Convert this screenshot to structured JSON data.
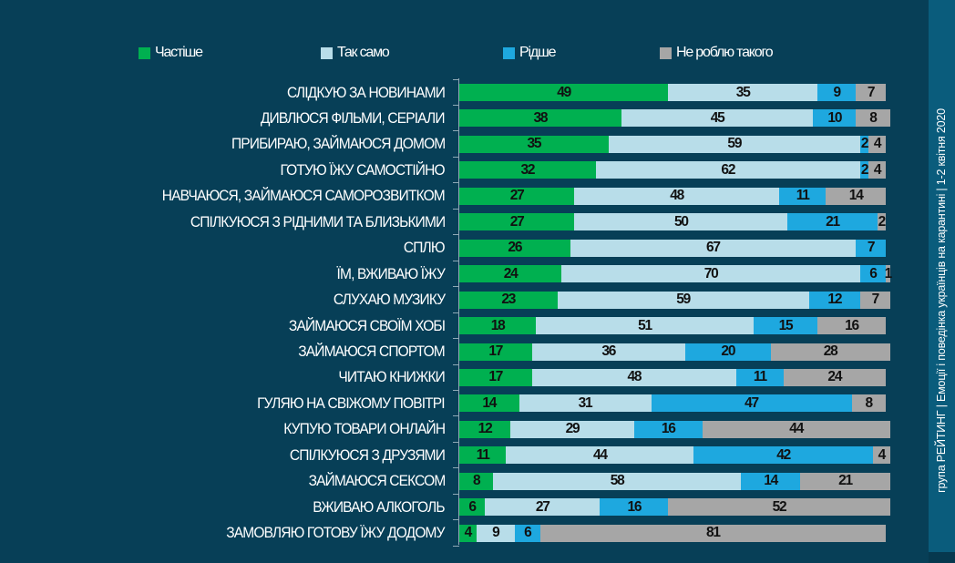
{
  "side_caption": "група РЕЙТИНГ  |  Емоції і поведінка українців на карантині  |  1-2 квітня 2020",
  "chart_data": {
    "type": "bar",
    "orientation": "horizontal",
    "stacked": true,
    "title": "",
    "xlabel": "",
    "ylabel": "",
    "xlim": [
      0,
      100
    ],
    "grid": false,
    "legend_position": "top",
    "legend": [
      {
        "key": "more",
        "label": "Частіше",
        "color": "#00b050"
      },
      {
        "key": "same",
        "label": "Так само",
        "color": "#b8dde9"
      },
      {
        "key": "less",
        "label": "Рідше",
        "color": "#1ea8df"
      },
      {
        "key": "none",
        "label": "Не роблю такого",
        "color": "#a6a6a6"
      }
    ],
    "categories": [
      "СЛІДКУЮ ЗА НОВИНАМИ",
      "ДИВЛЮСЯ ФІЛЬМИ, СЕРІАЛИ",
      "ПРИБИРАЮ, ЗАЙМАЮСЯ ДОМОМ",
      "ГОТУЮ ЇЖУ САМОСТІЙНО",
      "НАВЧАЮСЯ, ЗАЙМАЮСЯ САМОРОЗВИТКОМ",
      "СПІЛКУЮСЯ З РІДНИМИ ТА БЛИЗЬКИМИ",
      "СПЛЮ",
      "ЇМ, ВЖИВАЮ ЇЖУ",
      "СЛУХАЮ МУЗИКУ",
      "ЗАЙМАЮСЯ СВОЇМ ХОБІ",
      "ЗАЙМАЮСЯ СПОРТОМ",
      "ЧИТАЮ КНИЖКИ",
      "ГУЛЯЮ НА СВІЖОМУ ПОВІТРІ",
      "КУПУЮ ТОВАРИ ОНЛАЙН",
      "СПІЛКУЮСЯ З ДРУЗЯМИ",
      "ЗАЙМАЮСЯ СЕКСОМ",
      "ВЖИВАЮ АЛКОГОЛЬ",
      "ЗАМОВЛЯЮ ГОТОВУ ЇЖУ ДОДОМУ"
    ],
    "series": [
      {
        "name": "Частіше",
        "values": [
          49,
          38,
          35,
          32,
          27,
          27,
          26,
          24,
          23,
          18,
          17,
          17,
          14,
          12,
          11,
          8,
          6,
          4
        ]
      },
      {
        "name": "Так само",
        "values": [
          35,
          45,
          59,
          62,
          48,
          50,
          67,
          70,
          59,
          51,
          36,
          48,
          31,
          29,
          44,
          58,
          27,
          9
        ]
      },
      {
        "name": "Рідше",
        "values": [
          9,
          10,
          2,
          2,
          11,
          21,
          7,
          6,
          12,
          15,
          20,
          11,
          47,
          16,
          42,
          14,
          16,
          6
        ]
      },
      {
        "name": "Не роблю такого",
        "values": [
          7,
          8,
          4,
          4,
          14,
          2,
          null,
          1,
          7,
          16,
          28,
          24,
          8,
          44,
          4,
          21,
          52,
          81
        ]
      }
    ]
  }
}
